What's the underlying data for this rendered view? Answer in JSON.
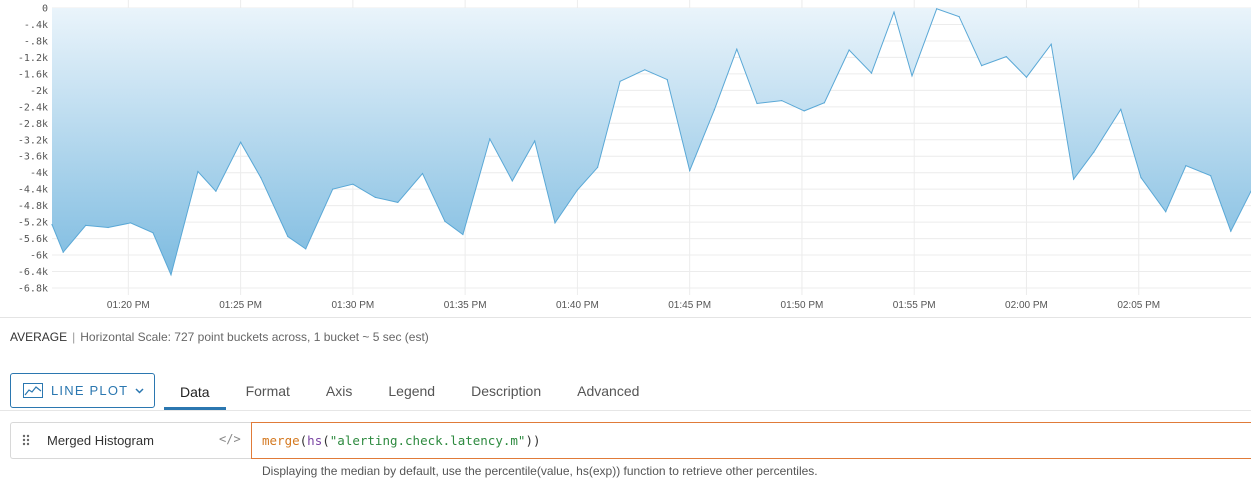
{
  "chart_data": {
    "type": "area",
    "title": "",
    "xlabel": "",
    "ylabel": "",
    "y_ticks": [
      "0",
      "-.4k",
      "-.8k",
      "-1.2k",
      "-1.6k",
      "-2k",
      "-2.4k",
      "-2.8k",
      "-3.2k",
      "-3.6k",
      "-4k",
      "-4.4k",
      "-4.8k",
      "-5.2k",
      "-5.6k",
      "-6k",
      "-6.4k",
      "-6.8k"
    ],
    "ylim": [
      -6.95,
      0.05
    ],
    "y_unit": "k",
    "x_ticks": [
      "01:20 PM",
      "01:25 PM",
      "01:30 PM",
      "01:35 PM",
      "01:40 PM",
      "01:45 PM",
      "01:50 PM",
      "01:55 PM",
      "02:00 PM",
      "02:05 PM"
    ],
    "xlim": [
      16.6,
      70
    ],
    "x_unit": "minutes after 01:00 PM",
    "grid": true,
    "fill_gradient": [
      "#eaf4fb",
      "#7dbbe0"
    ],
    "line_color": "#5aa8d6",
    "series": [
      {
        "name": "",
        "x": [
          16.6,
          17.1,
          18.1,
          19.1,
          20.1,
          21.1,
          21.9,
          23.1,
          23.9,
          25.0,
          25.9,
          27.1,
          27.9,
          29.1,
          30.0,
          31.0,
          32.0,
          33.1,
          34.1,
          34.9,
          36.1,
          37.1,
          38.1,
          39.0,
          40.0,
          40.9,
          41.9,
          43.0,
          44.0,
          45.0,
          46.1,
          47.1,
          48.0,
          49.1,
          50.1,
          51.0,
          52.1,
          53.1,
          54.1,
          54.9,
          56.0,
          57.0,
          58.0,
          59.1,
          60.0,
          61.1,
          62.1,
          63.0,
          64.2,
          65.1,
          66.2,
          67.1,
          68.2,
          69.1,
          70.0
        ],
        "y": [
          -5.26,
          -5.93,
          -5.28,
          -5.33,
          -5.22,
          -5.46,
          -6.48,
          -3.97,
          -4.45,
          -3.26,
          -4.12,
          -5.55,
          -5.85,
          -4.4,
          -4.28,
          -4.6,
          -4.72,
          -4.02,
          -5.18,
          -5.5,
          -3.18,
          -4.2,
          -3.23,
          -5.22,
          -4.42,
          -3.87,
          -1.78,
          -1.5,
          -1.74,
          -3.95,
          -2.47,
          -1.0,
          -2.32,
          -2.25,
          -2.5,
          -2.3,
          -1.02,
          -1.58,
          -0.1,
          -1.65,
          -0.02,
          -0.21,
          -1.4,
          -1.18,
          -1.68,
          -0.88,
          -4.16,
          -3.5,
          -2.46,
          -4.12,
          -4.95,
          -3.83,
          -4.07,
          -5.42,
          -4.45
        ]
      }
    ]
  },
  "summary_label": "AVERAGE",
  "scale_separator": "|",
  "scale_text": "Horizontal Scale: 727 point buckets across, 1 bucket ~ 5 sec (est)",
  "plot_type_button": {
    "label": "LINE PLOT",
    "icon": "line-plot-icon",
    "caret": "chevron-down-icon"
  },
  "tabs": [
    {
      "label": "Data",
      "active": true
    },
    {
      "label": "Format",
      "active": false
    },
    {
      "label": "Axis",
      "active": false
    },
    {
      "label": "Legend",
      "active": false
    },
    {
      "label": "Description",
      "active": false
    },
    {
      "label": "Advanced",
      "active": false
    }
  ],
  "query": {
    "name": "Merged Histogram",
    "code_toggle": "</>",
    "fn_outer": "merge",
    "paren_open": "(",
    "fn_inner": "hs",
    "paren_inner_open": "(",
    "metric": "\"alerting.check.latency.m\"",
    "paren_close": "))"
  },
  "hint": "Displaying the median by default, use the percentile(value, hs(exp)) function to retrieve other percentiles.",
  "colors": {
    "accent": "#2b77b0",
    "query_border": "#e07b39"
  }
}
